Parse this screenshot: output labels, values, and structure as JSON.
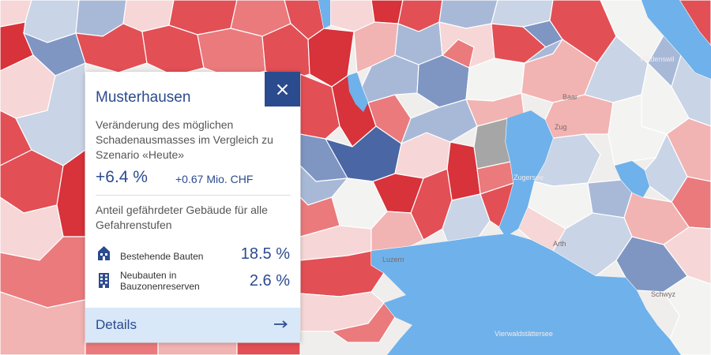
{
  "map": {
    "palette": {
      "dark_red": "#d8323a",
      "red": "#e24f55",
      "mid_red": "#ea7a7c",
      "light_red": "#f2b3b3",
      "pale_red": "#f6d6d6",
      "neutral": "#f3f3f1",
      "grey": "#a6a6a6",
      "pale_blue": "#c9d4e6",
      "light_blue": "#a8b9d8",
      "mid_blue": "#7f96c3",
      "dark_blue": "#4a66a4",
      "lake": "#6fb1ea"
    },
    "place_labels": [
      "Baar",
      "Zug",
      "Arth",
      "Schwyz",
      "Luzern",
      "Wädenswil",
      "Zugersee",
      "Vierwaldstättersee"
    ]
  },
  "popup": {
    "title": "Musterhausen",
    "close_icon": "close-icon",
    "description": "Veränderung des möglichen Schadenausmasses im Vergleich zu Szenario «Heute»",
    "change_percent": "+6.4 %",
    "change_chf": "+0.67 Mio. CHF",
    "share_heading": "Anteil gefährdeter Gebäude für alle Gefahrenstufen",
    "rows": [
      {
        "icon": "house-icon",
        "label": "Bestehende Bauten",
        "value": "18.5 %"
      },
      {
        "icon": "building-icon",
        "label": "Neubauten in Bauzonenreserven",
        "value": "2.6 %"
      }
    ],
    "details_label": "Details",
    "details_icon": "arrow-right-icon"
  }
}
